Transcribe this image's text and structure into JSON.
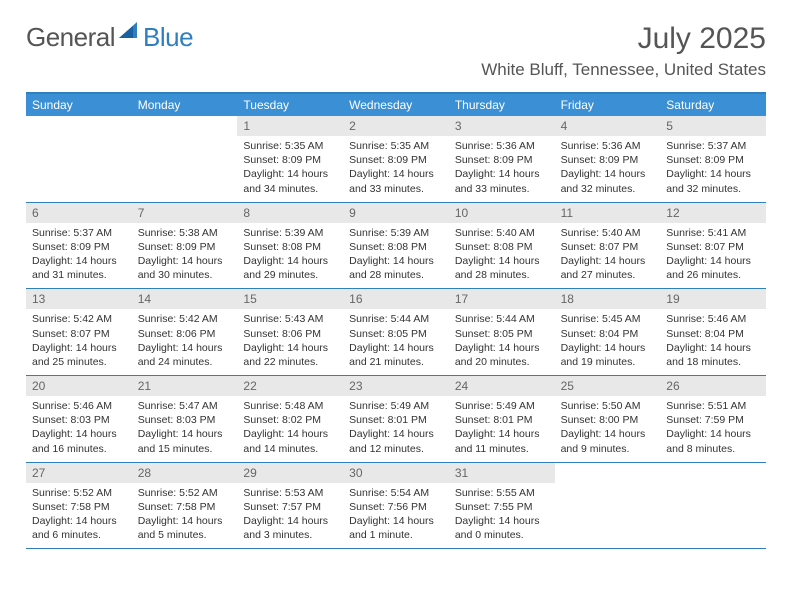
{
  "logo": {
    "part1": "General",
    "part2": "Blue"
  },
  "title": "July 2025",
  "location": "White Bluff, Tennessee, United States",
  "colors": {
    "header_bg": "#3b8fd4",
    "accent": "#2f7fbf",
    "daynum_bg": "#e8e8e8",
    "text": "#333333",
    "muted": "#666666"
  },
  "day_names": [
    "Sunday",
    "Monday",
    "Tuesday",
    "Wednesday",
    "Thursday",
    "Friday",
    "Saturday"
  ],
  "weeks": [
    [
      {
        "n": "",
        "empty": true
      },
      {
        "n": "",
        "empty": true
      },
      {
        "n": "1",
        "sr": "Sunrise: 5:35 AM",
        "ss": "Sunset: 8:09 PM",
        "dl1": "Daylight: 14 hours",
        "dl2": "and 34 minutes."
      },
      {
        "n": "2",
        "sr": "Sunrise: 5:35 AM",
        "ss": "Sunset: 8:09 PM",
        "dl1": "Daylight: 14 hours",
        "dl2": "and 33 minutes."
      },
      {
        "n": "3",
        "sr": "Sunrise: 5:36 AM",
        "ss": "Sunset: 8:09 PM",
        "dl1": "Daylight: 14 hours",
        "dl2": "and 33 minutes."
      },
      {
        "n": "4",
        "sr": "Sunrise: 5:36 AM",
        "ss": "Sunset: 8:09 PM",
        "dl1": "Daylight: 14 hours",
        "dl2": "and 32 minutes."
      },
      {
        "n": "5",
        "sr": "Sunrise: 5:37 AM",
        "ss": "Sunset: 8:09 PM",
        "dl1": "Daylight: 14 hours",
        "dl2": "and 32 minutes."
      }
    ],
    [
      {
        "n": "6",
        "sr": "Sunrise: 5:37 AM",
        "ss": "Sunset: 8:09 PM",
        "dl1": "Daylight: 14 hours",
        "dl2": "and 31 minutes."
      },
      {
        "n": "7",
        "sr": "Sunrise: 5:38 AM",
        "ss": "Sunset: 8:09 PM",
        "dl1": "Daylight: 14 hours",
        "dl2": "and 30 minutes."
      },
      {
        "n": "8",
        "sr": "Sunrise: 5:39 AM",
        "ss": "Sunset: 8:08 PM",
        "dl1": "Daylight: 14 hours",
        "dl2": "and 29 minutes."
      },
      {
        "n": "9",
        "sr": "Sunrise: 5:39 AM",
        "ss": "Sunset: 8:08 PM",
        "dl1": "Daylight: 14 hours",
        "dl2": "and 28 minutes."
      },
      {
        "n": "10",
        "sr": "Sunrise: 5:40 AM",
        "ss": "Sunset: 8:08 PM",
        "dl1": "Daylight: 14 hours",
        "dl2": "and 28 minutes."
      },
      {
        "n": "11",
        "sr": "Sunrise: 5:40 AM",
        "ss": "Sunset: 8:07 PM",
        "dl1": "Daylight: 14 hours",
        "dl2": "and 27 minutes."
      },
      {
        "n": "12",
        "sr": "Sunrise: 5:41 AM",
        "ss": "Sunset: 8:07 PM",
        "dl1": "Daylight: 14 hours",
        "dl2": "and 26 minutes."
      }
    ],
    [
      {
        "n": "13",
        "sr": "Sunrise: 5:42 AM",
        "ss": "Sunset: 8:07 PM",
        "dl1": "Daylight: 14 hours",
        "dl2": "and 25 minutes."
      },
      {
        "n": "14",
        "sr": "Sunrise: 5:42 AM",
        "ss": "Sunset: 8:06 PM",
        "dl1": "Daylight: 14 hours",
        "dl2": "and 24 minutes."
      },
      {
        "n": "15",
        "sr": "Sunrise: 5:43 AM",
        "ss": "Sunset: 8:06 PM",
        "dl1": "Daylight: 14 hours",
        "dl2": "and 22 minutes."
      },
      {
        "n": "16",
        "sr": "Sunrise: 5:44 AM",
        "ss": "Sunset: 8:05 PM",
        "dl1": "Daylight: 14 hours",
        "dl2": "and 21 minutes."
      },
      {
        "n": "17",
        "sr": "Sunrise: 5:44 AM",
        "ss": "Sunset: 8:05 PM",
        "dl1": "Daylight: 14 hours",
        "dl2": "and 20 minutes."
      },
      {
        "n": "18",
        "sr": "Sunrise: 5:45 AM",
        "ss": "Sunset: 8:04 PM",
        "dl1": "Daylight: 14 hours",
        "dl2": "and 19 minutes."
      },
      {
        "n": "19",
        "sr": "Sunrise: 5:46 AM",
        "ss": "Sunset: 8:04 PM",
        "dl1": "Daylight: 14 hours",
        "dl2": "and 18 minutes."
      }
    ],
    [
      {
        "n": "20",
        "sr": "Sunrise: 5:46 AM",
        "ss": "Sunset: 8:03 PM",
        "dl1": "Daylight: 14 hours",
        "dl2": "and 16 minutes."
      },
      {
        "n": "21",
        "sr": "Sunrise: 5:47 AM",
        "ss": "Sunset: 8:03 PM",
        "dl1": "Daylight: 14 hours",
        "dl2": "and 15 minutes."
      },
      {
        "n": "22",
        "sr": "Sunrise: 5:48 AM",
        "ss": "Sunset: 8:02 PM",
        "dl1": "Daylight: 14 hours",
        "dl2": "and 14 minutes."
      },
      {
        "n": "23",
        "sr": "Sunrise: 5:49 AM",
        "ss": "Sunset: 8:01 PM",
        "dl1": "Daylight: 14 hours",
        "dl2": "and 12 minutes."
      },
      {
        "n": "24",
        "sr": "Sunrise: 5:49 AM",
        "ss": "Sunset: 8:01 PM",
        "dl1": "Daylight: 14 hours",
        "dl2": "and 11 minutes."
      },
      {
        "n": "25",
        "sr": "Sunrise: 5:50 AM",
        "ss": "Sunset: 8:00 PM",
        "dl1": "Daylight: 14 hours",
        "dl2": "and 9 minutes."
      },
      {
        "n": "26",
        "sr": "Sunrise: 5:51 AM",
        "ss": "Sunset: 7:59 PM",
        "dl1": "Daylight: 14 hours",
        "dl2": "and 8 minutes."
      }
    ],
    [
      {
        "n": "27",
        "sr": "Sunrise: 5:52 AM",
        "ss": "Sunset: 7:58 PM",
        "dl1": "Daylight: 14 hours",
        "dl2": "and 6 minutes."
      },
      {
        "n": "28",
        "sr": "Sunrise: 5:52 AM",
        "ss": "Sunset: 7:58 PM",
        "dl1": "Daylight: 14 hours",
        "dl2": "and 5 minutes."
      },
      {
        "n": "29",
        "sr": "Sunrise: 5:53 AM",
        "ss": "Sunset: 7:57 PM",
        "dl1": "Daylight: 14 hours",
        "dl2": "and 3 minutes."
      },
      {
        "n": "30",
        "sr": "Sunrise: 5:54 AM",
        "ss": "Sunset: 7:56 PM",
        "dl1": "Daylight: 14 hours",
        "dl2": "and 1 minute."
      },
      {
        "n": "31",
        "sr": "Sunrise: 5:55 AM",
        "ss": "Sunset: 7:55 PM",
        "dl1": "Daylight: 14 hours",
        "dl2": "and 0 minutes."
      },
      {
        "n": "",
        "empty": true
      },
      {
        "n": "",
        "empty": true
      }
    ]
  ]
}
